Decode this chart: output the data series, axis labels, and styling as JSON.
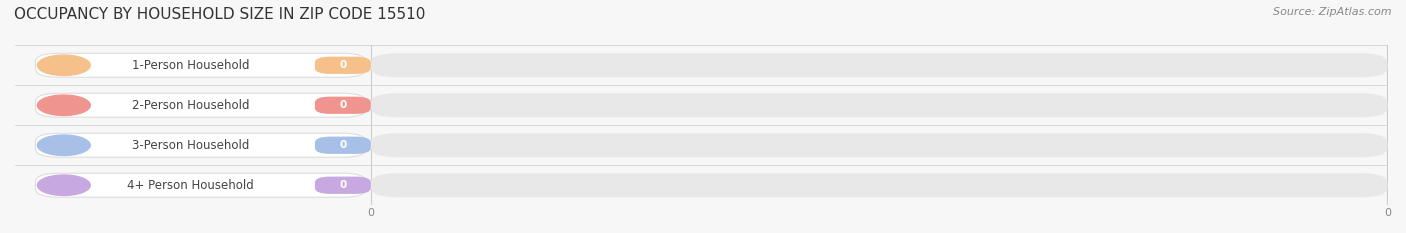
{
  "title": "OCCUPANCY BY HOUSEHOLD SIZE IN ZIP CODE 15510",
  "source": "Source: ZipAtlas.com",
  "categories": [
    "1-Person Household",
    "2-Person Household",
    "3-Person Household",
    "4+ Person Household"
  ],
  "values": [
    0,
    0,
    0,
    0
  ],
  "bar_colors": [
    "#f5c08a",
    "#f09490",
    "#a8c0e8",
    "#c8a8e0"
  ],
  "background_color": "#f7f7f7",
  "bar_bg_color": "#e8e8e8",
  "pill_bg_color": "#ffffff",
  "pill_edge_color": "#dddddd",
  "title_fontsize": 11,
  "source_fontsize": 8,
  "label_fontsize": 8.5,
  "value_fontsize": 7.5,
  "tick_fontsize": 8,
  "bar_height": 0.6,
  "grid_color": "#cccccc",
  "tick_color": "#888888",
  "text_color": "#444444"
}
